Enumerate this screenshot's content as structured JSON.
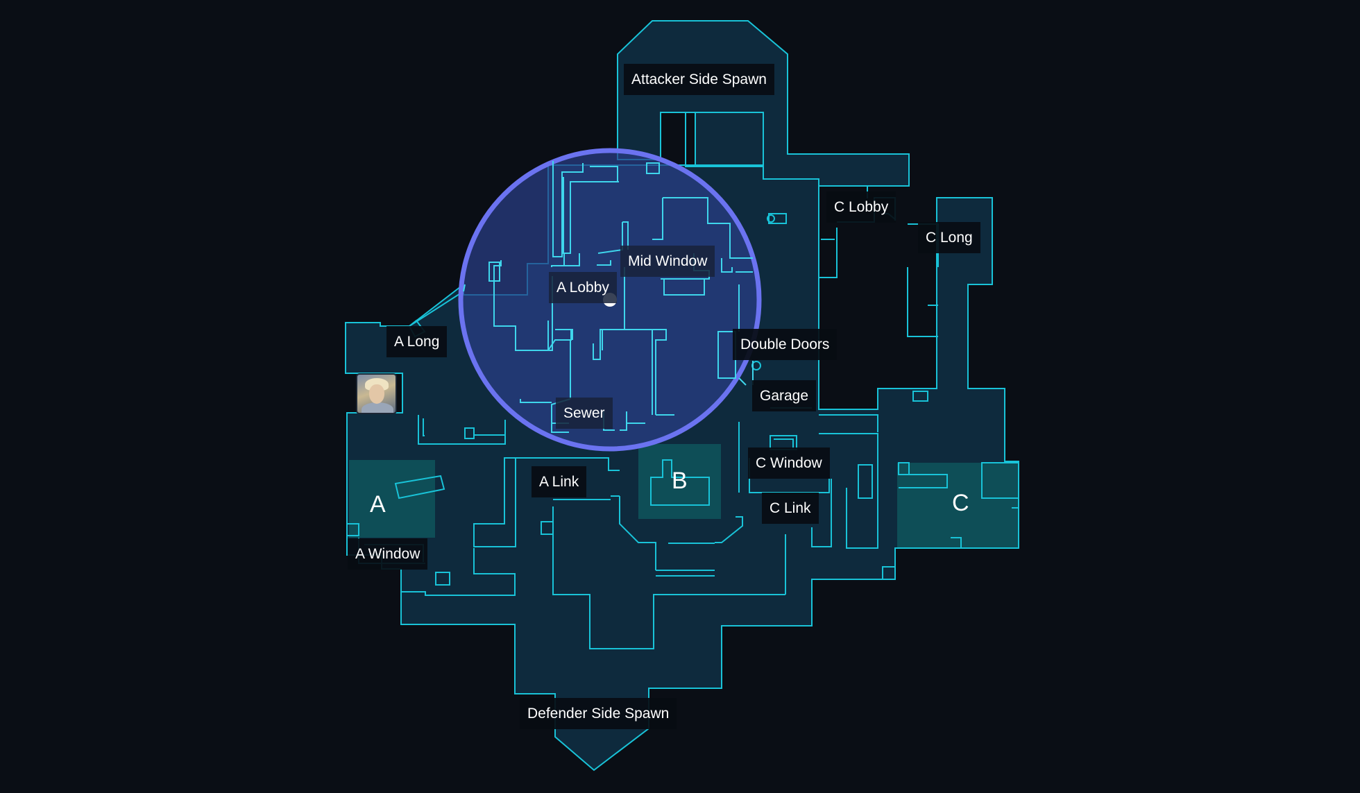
{
  "map": {
    "callouts": {
      "attacker_spawn": "Attacker Side Spawn",
      "defender_spawn": "Defender Side Spawn",
      "c_lobby": "C Lobby",
      "c_long": "C Long",
      "mid_window": "Mid Window",
      "a_lobby": "A Lobby",
      "a_long": "A Long",
      "double_doors": "Double Doors",
      "garage": "Garage",
      "sewer": "Sewer",
      "a_link": "A Link",
      "c_window": "C Window",
      "c_link": "C Link",
      "a_window": "A Window"
    },
    "sites": {
      "a": "A",
      "b": "B",
      "c": "C"
    },
    "agent": {
      "icon": "agent-portrait-icon"
    },
    "player_marker": {
      "icon": "player-position-dot-icon"
    },
    "colors": {
      "background": "#0a0e15",
      "map_fill": "#0e2a3d",
      "map_outline": "#19c3d8",
      "site_fill": "#0e4e57",
      "focus_circle_stroke": "#6b73f0",
      "focus_circle_fill": "#2a3f86"
    }
  }
}
